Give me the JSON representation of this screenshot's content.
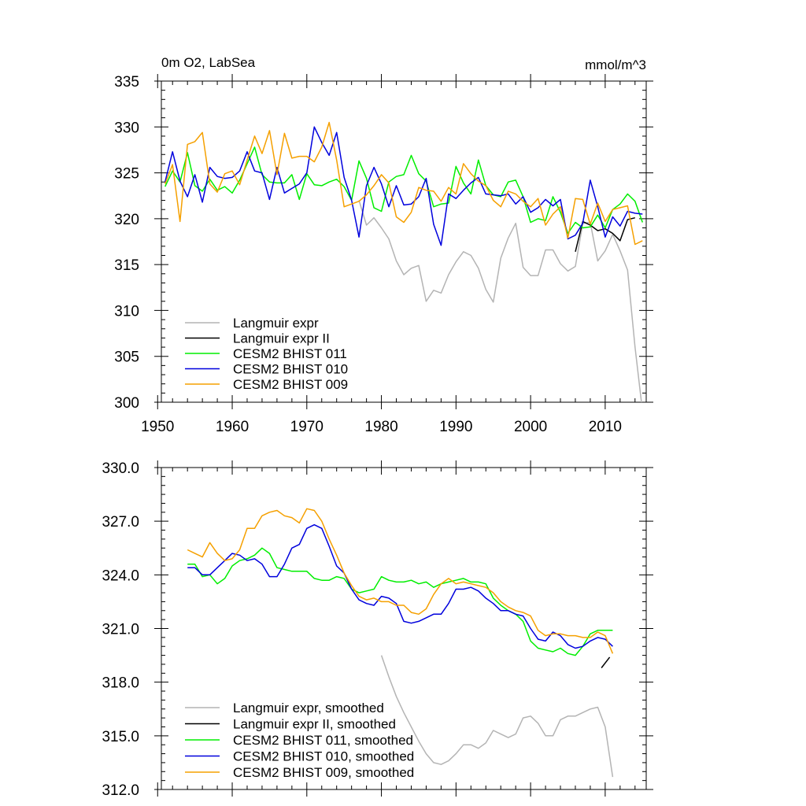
{
  "chart_data": [
    {
      "type": "line",
      "title": "0m O2, LabSea",
      "units": "mmol/m^3",
      "xlim": [
        1950.5,
        2015.5
      ],
      "ylim": [
        300,
        335
      ],
      "x_ticks": [
        1950,
        1960,
        1970,
        1980,
        1990,
        2000,
        2010
      ],
      "y_ticks": [
        "300",
        "305",
        "310",
        "315",
        "320",
        "325",
        "330",
        "335"
      ],
      "y_tick_values": [
        300,
        305,
        310,
        315,
        320,
        325,
        330,
        335
      ],
      "legend_position": "lower-left",
      "series": [
        {
          "name": "Langmuir expr",
          "color": "#b4b4b4",
          "x": [
            1977,
            1978,
            1979,
            1980,
            1981,
            1982,
            1983,
            1984,
            1985,
            1986,
            1987,
            1988,
            1989,
            1990,
            1991,
            1992,
            1993,
            1994,
            1995,
            1996,
            1997,
            1998,
            1999,
            2000,
            2001,
            2002,
            2003,
            2004,
            2005,
            2006,
            2007,
            2008,
            2009,
            2010,
            2011,
            2012,
            2013,
            2014,
            2015
          ],
          "y": [
            322.0,
            319.3,
            320.1,
            319.0,
            317.8,
            315.4,
            313.9,
            314.6,
            314.9,
            311.0,
            312.2,
            311.9,
            313.9,
            315.3,
            316.4,
            316.0,
            314.6,
            312.3,
            310.9,
            315.7,
            317.9,
            319.5,
            314.7,
            313.8,
            313.8,
            316.6,
            316.6,
            315.1,
            314.3,
            314.8,
            319.5,
            319.6,
            315.4,
            316.5,
            318.3,
            316.5,
            314.4,
            306.0,
            299.0
          ]
        },
        {
          "name": "Langmuir expr II",
          "color": "#000000",
          "x": [
            2006,
            2007,
            2008,
            2009,
            2010,
            2011,
            2012,
            2013,
            2014
          ],
          "y": [
            316.4,
            319.7,
            319.3,
            318.7,
            318.9,
            318.4,
            317.6,
            319.9,
            320.1
          ]
        },
        {
          "name": "CESM2 BHIST 011",
          "color": "#00ee00",
          "x": [
            1951,
            1952,
            1953,
            1954,
            1955,
            1956,
            1957,
            1958,
            1959,
            1960,
            1961,
            1962,
            1963,
            1964,
            1965,
            1966,
            1967,
            1968,
            1969,
            1970,
            1971,
            1972,
            1973,
            1974,
            1975,
            1976,
            1977,
            1978,
            1979,
            1980,
            1981,
            1982,
            1983,
            1984,
            1985,
            1986,
            1987,
            1988,
            1989,
            1990,
            1991,
            1992,
            1993,
            1994,
            1995,
            1996,
            1997,
            1998,
            1999,
            2000,
            2001,
            2002,
            2003,
            2004,
            2005,
            2006,
            2007,
            2008,
            2009,
            2010,
            2011,
            2012,
            2013,
            2014,
            2015
          ],
          "y": [
            323.5,
            325.2,
            324.0,
            327.2,
            323.6,
            323.0,
            324.3,
            323.1,
            323.5,
            322.8,
            324.2,
            326.0,
            327.8,
            324.8,
            324.0,
            323.9,
            323.9,
            324.8,
            322.1,
            324.9,
            323.7,
            323.6,
            324.0,
            324.3,
            323.5,
            322.0,
            326.3,
            324.4,
            321.2,
            320.8,
            324.0,
            324.6,
            324.8,
            326.9,
            324.9,
            324.1,
            321.3,
            321.6,
            321.7,
            325.7,
            323.9,
            322.7,
            326.4,
            323.6,
            322.6,
            322.4,
            324.0,
            324.2,
            322.4,
            319.6,
            320.0,
            319.8,
            322.4,
            320.7,
            318.4,
            319.6,
            319.0,
            319.1,
            320.4,
            319.0,
            321.0,
            321.6,
            322.7,
            321.9,
            319.6
          ]
        },
        {
          "name": "CESM2 BHIST 010",
          "color": "#0000dd",
          "x": [
            1951,
            1952,
            1953,
            1954,
            1955,
            1956,
            1957,
            1958,
            1959,
            1960,
            1961,
            1962,
            1963,
            1964,
            1965,
            1966,
            1967,
            1968,
            1969,
            1970,
            1971,
            1972,
            1973,
            1974,
            1975,
            1976,
            1977,
            1978,
            1979,
            1980,
            1981,
            1982,
            1983,
            1984,
            1985,
            1986,
            1987,
            1988,
            1989,
            1990,
            1991,
            1992,
            1993,
            1994,
            1995,
            1996,
            1997,
            1998,
            1999,
            2000,
            2001,
            2002,
            2003,
            2004,
            2005,
            2006,
            2007,
            2008,
            2009,
            2010,
            2011,
            2012,
            2013,
            2014,
            2015
          ],
          "y": [
            324.0,
            327.3,
            324.1,
            322.4,
            324.8,
            321.8,
            325.6,
            324.6,
            324.4,
            324.5,
            325.2,
            327.3,
            325.2,
            325.0,
            322.1,
            325.6,
            322.8,
            323.3,
            323.8,
            325.0,
            330.0,
            328.3,
            326.9,
            329.4,
            324.5,
            322.0,
            318.0,
            323.6,
            325.6,
            323.8,
            321.3,
            323.6,
            321.5,
            321.6,
            322.4,
            324.4,
            319.4,
            317.1,
            322.7,
            322.2,
            323.1,
            323.9,
            324.5,
            322.7,
            322.6,
            322.5,
            322.7,
            321.6,
            322.4,
            320.7,
            321.2,
            322.1,
            321.4,
            322.1,
            317.8,
            318.2,
            319.5,
            324.2,
            321.3,
            318.0,
            320.2,
            319.2,
            320.8,
            320.6,
            320.5
          ]
        },
        {
          "name": "CESM2 BHIST 009",
          "color": "#f5a000",
          "x": [
            1951,
            1952,
            1953,
            1954,
            1955,
            1956,
            1957,
            1958,
            1959,
            1960,
            1961,
            1962,
            1963,
            1964,
            1965,
            1966,
            1967,
            1968,
            1969,
            1970,
            1971,
            1972,
            1973,
            1974,
            1975,
            1976,
            1977,
            1978,
            1979,
            1980,
            1981,
            1982,
            1983,
            1984,
            1985,
            1986,
            1987,
            1988,
            1989,
            1990,
            1991,
            1992,
            1993,
            1994,
            1995,
            1996,
            1997,
            1998,
            1999,
            2000,
            2001,
            2002,
            2003,
            2004,
            2005,
            2006,
            2007,
            2008,
            2009,
            2010,
            2011,
            2012,
            2013,
            2014,
            2015
          ],
          "y": [
            323.8,
            325.9,
            319.7,
            328.1,
            328.4,
            329.4,
            323.8,
            322.9,
            324.9,
            325.2,
            323.7,
            326.4,
            329.0,
            327.1,
            329.6,
            324.8,
            329.3,
            326.6,
            326.8,
            326.8,
            326.2,
            327.8,
            330.5,
            326.4,
            321.3,
            321.6,
            321.9,
            322.6,
            323.6,
            324.8,
            323.9,
            320.2,
            319.6,
            320.7,
            323.4,
            323.1,
            323.0,
            321.9,
            323.4,
            322.7,
            326.0,
            324.9,
            324.1,
            323.6,
            322.0,
            321.3,
            323.0,
            322.7,
            321.9,
            321.3,
            322.2,
            319.3,
            320.5,
            321.3,
            317.9,
            322.2,
            322.1,
            319.4,
            321.7,
            319.7,
            321.0,
            321.2,
            321.4,
            317.2,
            317.6
          ]
        }
      ]
    },
    {
      "type": "line",
      "title": "",
      "xlim": [
        1950.5,
        2015.5
      ],
      "ylim": [
        312,
        330
      ],
      "x_ticks": [
        1950,
        1960,
        1970,
        1980,
        1990,
        2000,
        2010
      ],
      "y_ticks": [
        "312.0",
        "315.0",
        "318.0",
        "321.0",
        "324.0",
        "327.0",
        "330.0"
      ],
      "y_tick_values": [
        312,
        315,
        318,
        321,
        324,
        327,
        330
      ],
      "legend_position": "lower-left",
      "series": [
        {
          "name": "Langmuir expr, smoothed",
          "color": "#b4b4b4",
          "x": [
            1980,
            1981,
            1982,
            1983,
            1984,
            1985,
            1986,
            1987,
            1988,
            1989,
            1990,
            1991,
            1992,
            1993,
            1994,
            1995,
            1996,
            1997,
            1998,
            1999,
            2000,
            2001,
            2002,
            2003,
            2004,
            2005,
            2006,
            2007,
            2008,
            2009,
            2010,
            2011
          ],
          "y": [
            319.5,
            318.3,
            317.2,
            316.3,
            315.5,
            314.7,
            314.0,
            313.5,
            313.4,
            313.6,
            314.0,
            314.5,
            314.5,
            314.3,
            314.6,
            315.3,
            315.1,
            314.9,
            315.1,
            316.0,
            316.1,
            315.7,
            315.0,
            315.0,
            315.9,
            316.1,
            316.1,
            316.3,
            316.5,
            316.6,
            315.5,
            312.7
          ]
        },
        {
          "name": "Langmuir expr II, smoothed",
          "color": "#000000",
          "x": [
            2009.5,
            2010.6
          ],
          "y": [
            318.8,
            319.4
          ]
        },
        {
          "name": "CESM2 BHIST 011, smoothed",
          "color": "#00ee00",
          "x": [
            1954,
            1955,
            1956,
            1957,
            1958,
            1959,
            1960,
            1961,
            1962,
            1963,
            1964,
            1965,
            1966,
            1967,
            1968,
            1969,
            1970,
            1971,
            1972,
            1973,
            1974,
            1975,
            1976,
            1977,
            1978,
            1979,
            1980,
            1981,
            1982,
            1983,
            1984,
            1985,
            1986,
            1987,
            1988,
            1989,
            1990,
            1991,
            1992,
            1993,
            1994,
            1995,
            1996,
            1997,
            1998,
            1999,
            2000,
            2001,
            2002,
            2003,
            2004,
            2005,
            2006,
            2007,
            2008,
            2009,
            2010,
            2011
          ],
          "y": [
            324.6,
            324.6,
            323.9,
            324.0,
            323.5,
            323.8,
            324.5,
            324.8,
            324.9,
            325.1,
            325.5,
            325.2,
            324.4,
            324.3,
            324.2,
            324.2,
            324.2,
            323.8,
            323.7,
            323.7,
            323.9,
            323.8,
            323.2,
            323.0,
            323.1,
            323.2,
            323.9,
            323.7,
            323.6,
            323.6,
            323.7,
            323.5,
            323.6,
            323.3,
            323.5,
            323.6,
            323.7,
            323.8,
            323.6,
            323.6,
            323.5,
            322.7,
            322.3,
            322.0,
            321.8,
            321.4,
            320.3,
            319.9,
            319.8,
            319.7,
            319.9,
            319.6,
            319.5,
            320.0,
            320.7,
            320.9,
            320.9,
            320.9
          ]
        },
        {
          "name": "CESM2 BHIST 010, smoothed",
          "color": "#0000dd",
          "x": [
            1954,
            1955,
            1956,
            1957,
            1958,
            1959,
            1960,
            1961,
            1962,
            1963,
            1964,
            1965,
            1966,
            1967,
            1968,
            1969,
            1970,
            1971,
            1972,
            1973,
            1974,
            1975,
            1976,
            1977,
            1978,
            1979,
            1980,
            1981,
            1982,
            1983,
            1984,
            1985,
            1986,
            1987,
            1988,
            1989,
            1990,
            1991,
            1992,
            1993,
            1994,
            1995,
            1996,
            1997,
            1998,
            1999,
            2000,
            2001,
            2002,
            2003,
            2004,
            2005,
            2006,
            2007,
            2008,
            2009,
            2010,
            2011
          ],
          "y": [
            324.4,
            324.4,
            324.0,
            324.0,
            324.4,
            324.8,
            325.2,
            325.1,
            324.8,
            324.9,
            324.6,
            323.9,
            323.9,
            324.6,
            325.5,
            325.7,
            326.6,
            326.8,
            326.6,
            325.6,
            324.5,
            324.1,
            323.2,
            322.6,
            322.4,
            322.3,
            322.8,
            322.7,
            322.4,
            321.4,
            321.3,
            321.4,
            321.6,
            321.8,
            321.8,
            322.4,
            323.2,
            323.2,
            323.3,
            323.1,
            322.7,
            322.4,
            322.0,
            322.0,
            321.8,
            321.7,
            321.0,
            320.4,
            320.3,
            320.8,
            320.6,
            320.1,
            319.9,
            320.0,
            320.3,
            320.5,
            320.4,
            320.0
          ]
        },
        {
          "name": "CESM2 BHIST 009, smoothed",
          "color": "#f5a000",
          "x": [
            1954,
            1955,
            1956,
            1957,
            1958,
            1959,
            1960,
            1961,
            1962,
            1963,
            1964,
            1965,
            1966,
            1967,
            1968,
            1969,
            1970,
            1971,
            1972,
            1973,
            1974,
            1975,
            1976,
            1977,
            1978,
            1979,
            1980,
            1981,
            1982,
            1983,
            1984,
            1985,
            1986,
            1987,
            1988,
            1989,
            1990,
            1991,
            1992,
            1993,
            1994,
            1995,
            1996,
            1997,
            1998,
            1999,
            2000,
            2001,
            2002,
            2003,
            2004,
            2005,
            2006,
            2007,
            2008,
            2009,
            2010,
            2011
          ],
          "y": [
            325.4,
            325.2,
            325.0,
            325.8,
            325.2,
            324.8,
            324.9,
            325.4,
            326.6,
            326.6,
            327.3,
            327.5,
            327.6,
            327.3,
            327.2,
            326.9,
            327.7,
            327.6,
            327.0,
            326.0,
            325.1,
            324.1,
            323.4,
            322.8,
            322.6,
            322.7,
            322.5,
            322.5,
            322.3,
            322.3,
            321.9,
            321.8,
            322.1,
            322.9,
            323.5,
            323.8,
            323.5,
            323.6,
            323.5,
            323.4,
            323.3,
            323.0,
            322.5,
            322.2,
            322.0,
            321.9,
            321.7,
            320.9,
            320.6,
            320.7,
            320.7,
            320.6,
            320.6,
            320.5,
            320.5,
            320.8,
            320.6,
            319.6
          ]
        }
      ]
    }
  ]
}
